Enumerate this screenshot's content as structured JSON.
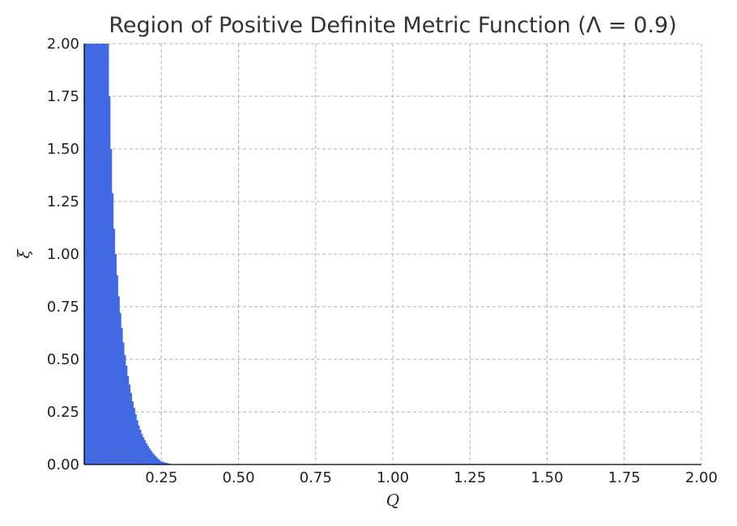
{
  "chart_data": {
    "type": "area",
    "title": "Region of Positive Definite Metric Function (Λ = 0.9)",
    "xlabel": "Q",
    "ylabel": "ξ",
    "xlim": [
      0.0,
      2.0
    ],
    "ylim": [
      0.0,
      2.0
    ],
    "grid": true,
    "legend": "none",
    "fill_color": "#4169e1",
    "x_ticks": [
      "0.25",
      "0.50",
      "0.75",
      "1.00",
      "1.25",
      "1.50",
      "1.75",
      "2.00"
    ],
    "x_tick_values": [
      0.25,
      0.5,
      0.75,
      1.0,
      1.25,
      1.5,
      1.75,
      2.0
    ],
    "y_ticks": [
      "0.00",
      "0.25",
      "0.50",
      "0.75",
      "1.00",
      "1.25",
      "1.50",
      "1.75",
      "2.00"
    ],
    "y_tick_values": [
      0.0,
      0.25,
      0.5,
      0.75,
      1.0,
      1.25,
      1.5,
      1.75,
      2.0
    ],
    "series": [
      {
        "boundary_Q": [
          0.0,
          0.08,
          0.08,
          0.085,
          0.09,
          0.095,
          0.1,
          0.105,
          0.11,
          0.115,
          0.12,
          0.125,
          0.13,
          0.135,
          0.14,
          0.145,
          0.15,
          0.155,
          0.16,
          0.165,
          0.17,
          0.175,
          0.18,
          0.185,
          0.19,
          0.195,
          0.2,
          0.205,
          0.21,
          0.215,
          0.22,
          0.225,
          0.23,
          0.235,
          0.24,
          0.245,
          0.25,
          0.26,
          0.27,
          0.28,
          0.29
        ],
        "boundary_xi": [
          2.0,
          2.0,
          1.75,
          1.5,
          1.29,
          1.12,
          1.0,
          0.9,
          0.8,
          0.72,
          0.65,
          0.58,
          0.52,
          0.47,
          0.42,
          0.38,
          0.34,
          0.3,
          0.27,
          0.24,
          0.21,
          0.185,
          0.165,
          0.145,
          0.13,
          0.115,
          0.1,
          0.088,
          0.076,
          0.066,
          0.056,
          0.047,
          0.039,
          0.031,
          0.024,
          0.018,
          0.013,
          0.008,
          0.005,
          0.002,
          0.0
        ]
      }
    ]
  }
}
